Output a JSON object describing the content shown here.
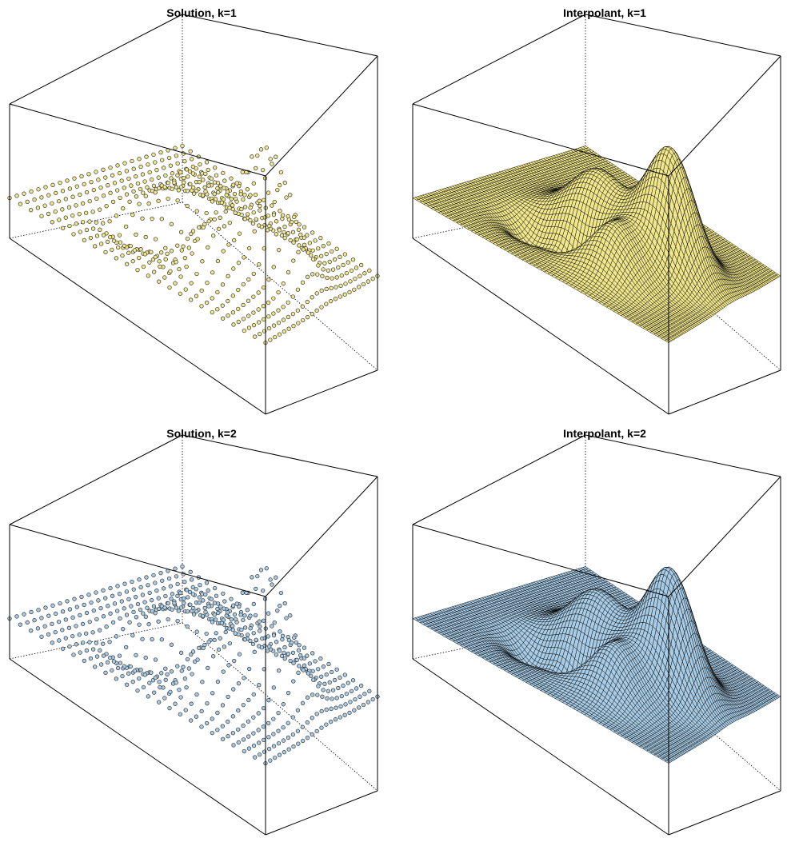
{
  "colors": {
    "k1_fill": "#f0e68c",
    "k2_fill": "#a8cce6",
    "edge": "#000000",
    "background": "#ffffff"
  },
  "chart_data": [
    {
      "type": "scatter",
      "title": "Solution, k=1",
      "projection": "3d",
      "fill_color": "#f0e68c",
      "surface": "three_gaussian_peaks",
      "grid_n": 25,
      "zlim": [
        -0.6,
        1.4
      ],
      "axes_labels": false
    },
    {
      "type": "surface",
      "title": "Interpolant, k=1",
      "projection": "3d",
      "fill_color": "#f0e68c",
      "surface": "three_gaussian_peaks",
      "grid_n": 70,
      "zlim": [
        -0.6,
        1.4
      ],
      "axes_labels": false
    },
    {
      "type": "scatter",
      "title": "Solution, k=2",
      "projection": "3d",
      "fill_color": "#a8cce6",
      "surface": "three_gaussian_peaks",
      "grid_n": 25,
      "zlim": [
        -0.6,
        1.4
      ],
      "axes_labels": false
    },
    {
      "type": "surface",
      "title": "Interpolant, k=2",
      "projection": "3d",
      "fill_color": "#a8cce6",
      "surface": "three_gaussian_peaks",
      "grid_n": 70,
      "zlim": [
        -0.6,
        1.4
      ],
      "axes_labels": false
    }
  ]
}
